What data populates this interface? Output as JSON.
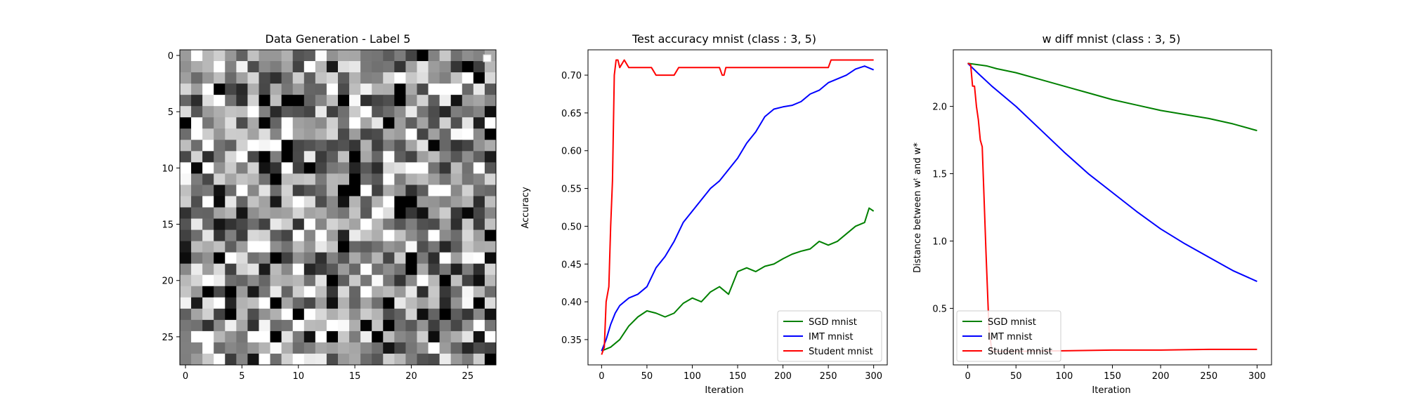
{
  "chart_data": [
    {
      "type": "heatmap",
      "title": "Data Generation - Label 5",
      "xlabel": "",
      "ylabel": "",
      "xlim": [
        -0.5,
        27.5
      ],
      "ylim": [
        27.5,
        -0.5
      ],
      "xticks": [
        0,
        5,
        10,
        15,
        20,
        25
      ],
      "yticks": [
        0,
        5,
        10,
        15,
        20,
        25
      ],
      "rows": 28,
      "cols": 28,
      "colormap": "gray"
    },
    {
      "type": "line",
      "title": "Test accuracy mnist (class : 3, 5)",
      "xlabel": "Iteration",
      "ylabel": "Accuracy",
      "xlim": [
        -15,
        315
      ],
      "ylim": [
        0.3165,
        0.7335
      ],
      "xticks": [
        0,
        50,
        100,
        150,
        200,
        250,
        300
      ],
      "yticks": [
        0.35,
        0.4,
        0.45,
        0.5,
        0.55,
        0.6,
        0.65,
        0.7
      ],
      "legend_position": "lower-right",
      "series": [
        {
          "name": "SGD mnist",
          "color": "#008000",
          "x": [
            0,
            10,
            20,
            30,
            40,
            50,
            60,
            70,
            80,
            90,
            100,
            110,
            120,
            130,
            140,
            150,
            160,
            170,
            180,
            190,
            200,
            210,
            220,
            230,
            240,
            250,
            260,
            270,
            280,
            290,
            295,
            300
          ],
          "y": [
            0.335,
            0.34,
            0.35,
            0.368,
            0.38,
            0.388,
            0.385,
            0.38,
            0.385,
            0.398,
            0.405,
            0.4,
            0.413,
            0.42,
            0.41,
            0.44,
            0.445,
            0.44,
            0.447,
            0.45,
            0.457,
            0.463,
            0.467,
            0.47,
            0.48,
            0.475,
            0.48,
            0.49,
            0.5,
            0.505,
            0.524,
            0.52
          ]
        },
        {
          "name": "IMT mnist",
          "color": "#0000ff",
          "x": [
            0,
            5,
            10,
            15,
            20,
            30,
            40,
            50,
            60,
            70,
            80,
            90,
            100,
            110,
            120,
            130,
            140,
            150,
            160,
            170,
            180,
            190,
            200,
            210,
            220,
            230,
            240,
            250,
            260,
            270,
            280,
            290,
            300
          ],
          "y": [
            0.335,
            0.35,
            0.37,
            0.385,
            0.395,
            0.405,
            0.41,
            0.42,
            0.445,
            0.46,
            0.48,
            0.505,
            0.52,
            0.535,
            0.55,
            0.56,
            0.575,
            0.59,
            0.61,
            0.625,
            0.645,
            0.655,
            0.658,
            0.66,
            0.665,
            0.675,
            0.68,
            0.69,
            0.695,
            0.7,
            0.708,
            0.712,
            0.707
          ]
        },
        {
          "name": "Student mnist",
          "color": "#ff0000",
          "x": [
            0,
            3,
            5,
            8,
            10,
            12,
            14,
            16,
            18,
            20,
            25,
            30,
            40,
            50,
            55,
            60,
            70,
            80,
            85,
            90,
            100,
            130,
            133,
            135,
            137,
            140,
            200,
            250,
            253,
            255,
            260,
            300
          ],
          "y": [
            0.33,
            0.34,
            0.4,
            0.42,
            0.5,
            0.56,
            0.7,
            0.72,
            0.72,
            0.71,
            0.72,
            0.71,
            0.71,
            0.71,
            0.71,
            0.7,
            0.7,
            0.7,
            0.71,
            0.71,
            0.71,
            0.71,
            0.7,
            0.7,
            0.71,
            0.71,
            0.71,
            0.71,
            0.72,
            0.72,
            0.72,
            0.72
          ]
        }
      ]
    },
    {
      "type": "line",
      "title": "w diff mnist (class : 3, 5)",
      "xlabel": "Iteration",
      "ylabel": "Distance between wᵗ and w*",
      "xlim": [
        -15,
        315
      ],
      "ylim": [
        0.08,
        2.42
      ],
      "xticks": [
        0,
        50,
        100,
        150,
        200,
        250,
        300
      ],
      "yticks": [
        0.5,
        1.0,
        1.5,
        2.0
      ],
      "legend_position": "lower-left",
      "series": [
        {
          "name": "SGD mnist",
          "color": "#008000",
          "x": [
            0,
            10,
            20,
            30,
            50,
            75,
            100,
            125,
            150,
            175,
            200,
            225,
            250,
            275,
            300
          ],
          "y": [
            2.32,
            2.31,
            2.3,
            2.28,
            2.25,
            2.2,
            2.15,
            2.1,
            2.05,
            2.01,
            1.97,
            1.94,
            1.91,
            1.87,
            1.82
          ]
        },
        {
          "name": "IMT mnist",
          "color": "#0000ff",
          "x": [
            0,
            10,
            25,
            50,
            75,
            100,
            125,
            150,
            175,
            200,
            225,
            250,
            275,
            300
          ],
          "y": [
            2.32,
            2.25,
            2.15,
            2.0,
            1.83,
            1.66,
            1.5,
            1.36,
            1.22,
            1.09,
            0.98,
            0.88,
            0.78,
            0.7
          ]
        },
        {
          "name": "Student mnist",
          "color": "#ff0000",
          "x": [
            0,
            3,
            5,
            7,
            9,
            11,
            13,
            15,
            17,
            19,
            22,
            25,
            35,
            50,
            100,
            150,
            200,
            250,
            300
          ],
          "y": [
            2.32,
            2.31,
            2.15,
            2.15,
            2.0,
            1.9,
            1.75,
            1.7,
            1.3,
            0.9,
            0.35,
            0.18,
            0.18,
            0.18,
            0.185,
            0.19,
            0.19,
            0.195,
            0.195
          ]
        }
      ]
    }
  ]
}
